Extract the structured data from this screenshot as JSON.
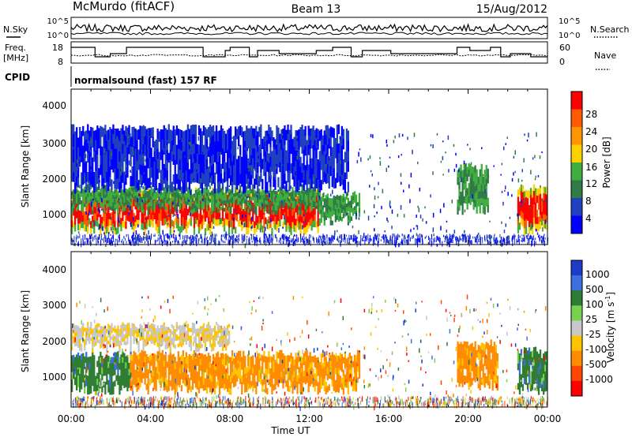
{
  "header": {
    "title": "McMurdo (fitACF)",
    "beam": "Beam 13",
    "date": "15/Aug/2012"
  },
  "panels": {
    "nsky_label": "N.Sky",
    "nsky_ticks": [
      "10^5",
      "10^0"
    ],
    "nsearch_label": "N.Search",
    "nsearch_ticks": [
      "10^5",
      "10^0"
    ],
    "freq_label": "Freq.",
    "freq_unit": "[MHz]",
    "freq_ticks": [
      "18",
      "8"
    ],
    "nave_label": "Nave",
    "nave_ticks": [
      "60",
      "0"
    ],
    "cpid_label": "CPID",
    "cpid_text": "normalsound (fast) 157 RF"
  },
  "axes": {
    "ylabel": "Slant Range [km]",
    "yticks": [
      "4000",
      "3000",
      "2000",
      "1000"
    ],
    "xlabel": "Time UT",
    "xticks": [
      "00:00",
      "04:00",
      "08:00",
      "12:00",
      "16:00",
      "20:00",
      "00:00"
    ]
  },
  "power_scale": {
    "label": "Power [dB]",
    "ticks": [
      "28",
      "24",
      "20",
      "16",
      "12",
      "8",
      "4"
    ],
    "colors": [
      "#ff0000",
      "#ff5a00",
      "#ff9600",
      "#ffd000",
      "#3fae3f",
      "#2f7a45",
      "#2040c0",
      "#0000ff"
    ]
  },
  "velocity_scale": {
    "label": "Velocity [m s",
    "label_sup": "-1",
    "label_end": "]",
    "ticks": [
      "1000",
      "500",
      "100",
      "25",
      "-25",
      "-100",
      "-500",
      "-1000"
    ],
    "colors": [
      "#1c3cc8",
      "#3c6ee0",
      "#2e7d32",
      "#7ad151",
      "#c8c8c8",
      "#ffc400",
      "#ff8c00",
      "#ff4500",
      "#ff0000"
    ]
  },
  "chart_data": [
    {
      "type": "heatmap",
      "title": "",
      "xlabel": "Time UT",
      "ylabel": "Slant Range [km]",
      "xlim": [
        "00:00",
        "24:00"
      ],
      "ylim": [
        180,
        4600
      ],
      "colorbar": "Power [dB]",
      "regions": [
        {
          "t0": 0.0,
          "t1": 12.5,
          "r0": 600,
          "r1": 1700,
          "value": 28
        },
        {
          "t0": 0.0,
          "t1": 12.5,
          "r0": 1200,
          "r1": 1800,
          "value": 12
        },
        {
          "t0": 12.5,
          "t1": 14.5,
          "r0": 900,
          "r1": 1600,
          "value": 12
        },
        {
          "t0": 0.0,
          "t1": 14.0,
          "r0": 1800,
          "r1": 3500,
          "value": 6
        },
        {
          "t0": 19.5,
          "t1": 21.0,
          "r0": 1200,
          "r1": 2400,
          "value": 12
        },
        {
          "t0": 22.5,
          "t1": 24.0,
          "r0": 600,
          "r1": 1800,
          "value": 24
        }
      ]
    },
    {
      "type": "heatmap",
      "title": "",
      "xlabel": "Time UT",
      "ylabel": "Slant Range [km]",
      "xlim": [
        "00:00",
        "24:00"
      ],
      "ylim": [
        180,
        4600
      ],
      "colorbar": "Velocity [m s-1]",
      "regions": [
        {
          "t0": 0.0,
          "t1": 3.0,
          "r0": 700,
          "r1": 1700,
          "value": 100
        },
        {
          "t0": 3.0,
          "t1": 14.5,
          "r0": 700,
          "r1": 1700,
          "value": -100
        },
        {
          "t0": 0.0,
          "t1": 8.0,
          "r0": 1900,
          "r1": 2500,
          "value": 0
        },
        {
          "t0": 19.5,
          "t1": 21.5,
          "r0": 800,
          "r1": 2000,
          "value": -100
        },
        {
          "t0": 22.5,
          "t1": 24.0,
          "r0": 700,
          "r1": 1800,
          "value": 100
        }
      ]
    }
  ]
}
